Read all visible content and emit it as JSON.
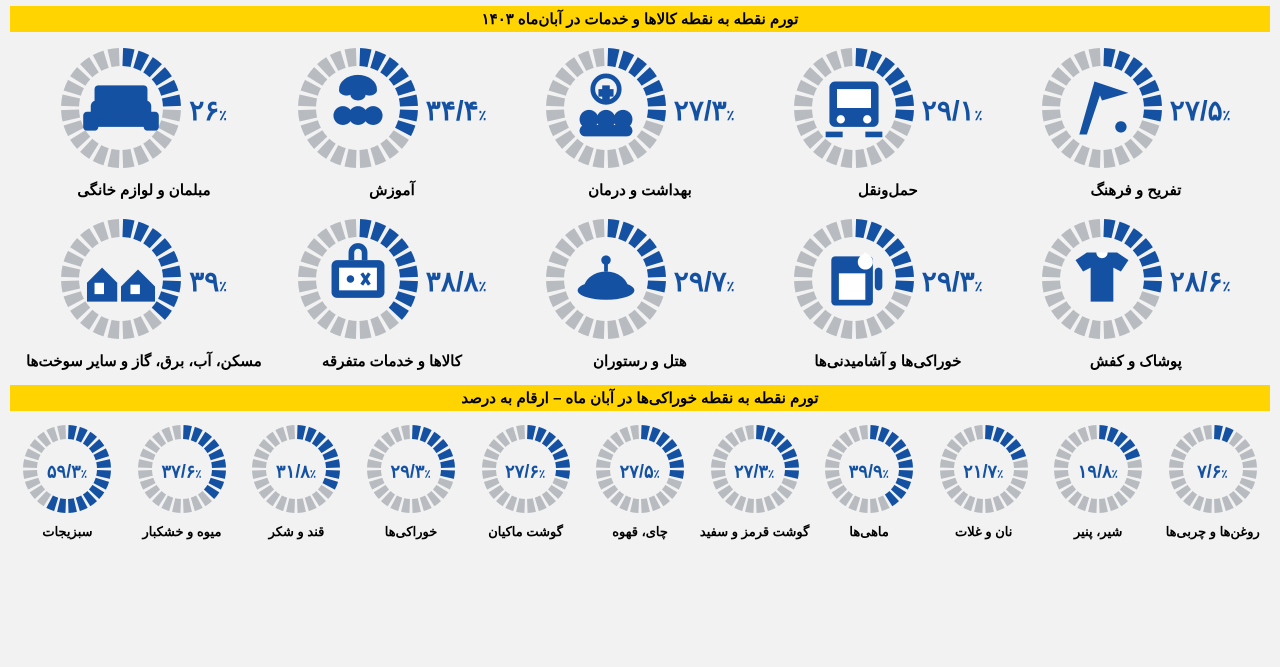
{
  "colors": {
    "accent": "#1451a3",
    "tick_off": "#b8bcc0",
    "tick_on": "#1451a3",
    "bg_inner": "#f2f2f2",
    "title_bg": "#ffd400"
  },
  "gauge_large": {
    "outer_r": 60,
    "inner_r": 42,
    "segments": 24,
    "gap_deg": 4
  },
  "gauge_small": {
    "outer_r": 44,
    "inner_r": 30,
    "segments": 24,
    "gap_deg": 4
  },
  "title1": "تورم نقطه به نقطه کالاها و خدمات در آبان‌ماه ۱۴۰۳",
  "title2": "تورم نقطه به نقطه خوراکی‌ها در آبان ماه – ارقام به درصد",
  "big_items": [
    {
      "label": "مبلمان و لوازم خانگی",
      "value": 26.0,
      "display": "۲۶",
      "icon": "sofa"
    },
    {
      "label": "آموزش",
      "value": 34.4,
      "display": "۳۴/۴",
      "icon": "education"
    },
    {
      "label": "بهداشت و درمان",
      "value": 27.3,
      "display": "۲۷/۳",
      "icon": "health"
    },
    {
      "label": "حمل‌ونقل",
      "value": 29.1,
      "display": "۲۹/۱",
      "icon": "transport"
    },
    {
      "label": "تفریح و فرهنگ",
      "value": 27.5,
      "display": "۲۷/۵",
      "icon": "leisure"
    },
    {
      "label": "مسکن، آب، برق، گاز و سایر سوخت‌ها",
      "value": 39.0,
      "display": "۳۹",
      "icon": "housing"
    },
    {
      "label": "کالاها و خدمات متفرقه",
      "value": 38.8,
      "display": "۳۸/۸",
      "icon": "misc"
    },
    {
      "label": "هتل و رستوران",
      "value": 29.7,
      "display": "۲۹/۷",
      "icon": "hotel"
    },
    {
      "label": "خوراکی‌ها و آشامیدنی‌ها",
      "value": 29.3,
      "display": "۲۹/۳",
      "icon": "food"
    },
    {
      "label": "پوشاک و کفش",
      "value": 28.6,
      "display": "۲۸/۶",
      "icon": "clothing"
    }
  ],
  "small_items": [
    {
      "label": "سبزیجات",
      "value": 59.3,
      "display": "۵۹/۳"
    },
    {
      "label": "میوه و خشکبار",
      "value": 37.6,
      "display": "۳۷/۶"
    },
    {
      "label": "قند و شکر",
      "value": 31.8,
      "display": "۳۱/۸"
    },
    {
      "label": "خوراکی‌ها",
      "value": 29.3,
      "display": "۲۹/۳"
    },
    {
      "label": "گوشت ماکیان",
      "value": 27.6,
      "display": "۲۷/۶"
    },
    {
      "label": "چای، قهوه",
      "value": 27.5,
      "display": "۲۷/۵"
    },
    {
      "label": "گوشت قرمز و سفید",
      "value": 27.3,
      "display": "۲۷/۳"
    },
    {
      "label": "ماهی‌ها",
      "value": 39.9,
      "display": "۳۹/۹"
    },
    {
      "label": "نان و غلات",
      "value": 21.7,
      "display": "۲۱/۷"
    },
    {
      "label": "شیر، پنیر",
      "value": 19.8,
      "display": "۱۹/۸"
    },
    {
      "label": "روغن‌ها و چربی‌ها",
      "value": 7.6,
      "display": "۷/۶"
    }
  ]
}
